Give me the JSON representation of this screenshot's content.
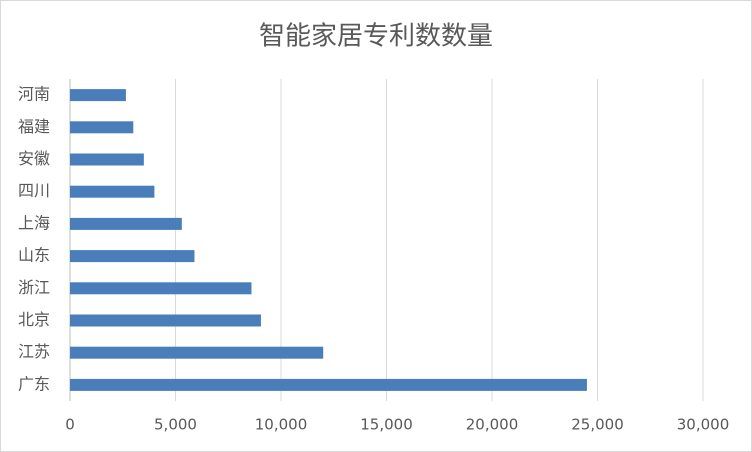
{
  "chart_data": {
    "type": "hbar",
    "title": "智能家居专利数数量",
    "categories": [
      "河南",
      "福建",
      "安徽",
      "四川",
      "上海",
      "山东",
      "浙江",
      "北京",
      "江苏",
      "广东"
    ],
    "values": [
      2650,
      3000,
      3500,
      4000,
      5300,
      5900,
      8600,
      9050,
      12000,
      24500
    ],
    "color": "#4a7ebb",
    "xlim": [
      0,
      30000
    ],
    "xticks": [
      0,
      {
        "value": 5000,
        "label": "5,000"
      },
      {
        "value": 10000,
        "label": "10,000"
      },
      {
        "value": 15000,
        "label": "15,000"
      },
      {
        "value": 20000,
        "label": "20,000"
      },
      {
        "value": 25000,
        "label": "25,000"
      },
      {
        "value": 30000,
        "label": "30,000"
      }
    ],
    "grid": true
  }
}
